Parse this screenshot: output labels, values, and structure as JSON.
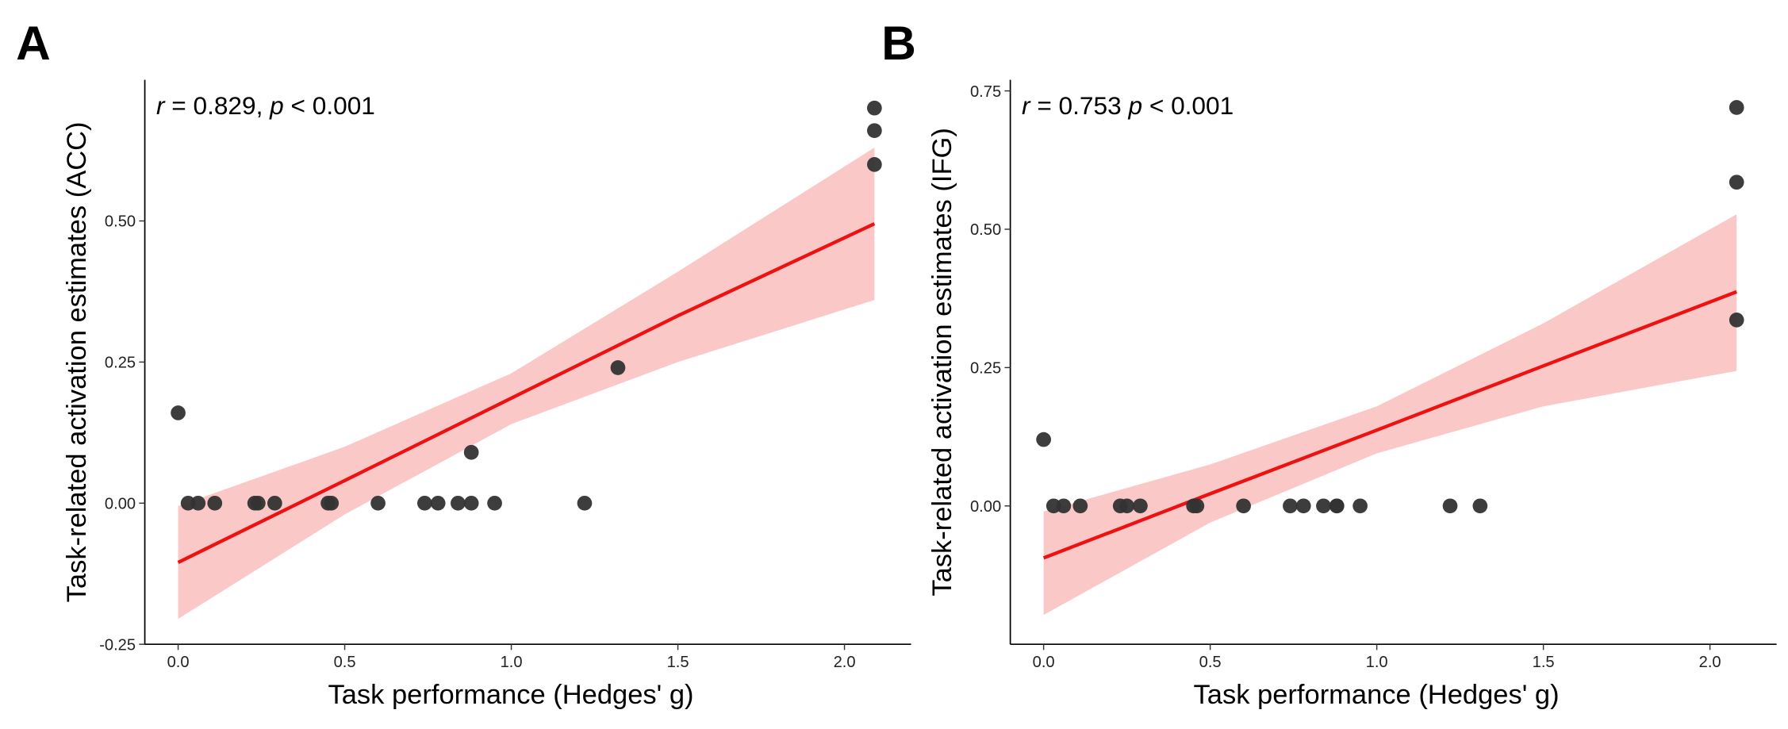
{
  "chart_data": [
    {
      "type": "scatter",
      "panel_label": "A",
      "annotation": {
        "r_symbol": "r",
        "r_text": " = 0.829, ",
        "p_symbol": "p",
        "p_text": " < 0.001"
      },
      "x_label": "Task performance (Hedges' g)",
      "y_label": "Task-related activation estimates (ACC)",
      "x": [
        0.0,
        0.03,
        0.06,
        0.11,
        0.23,
        0.24,
        0.29,
        0.45,
        0.46,
        0.6,
        0.74,
        0.78,
        0.84,
        0.88,
        0.88,
        0.95,
        1.22,
        1.32,
        2.09,
        2.09,
        2.09
      ],
      "values": [
        0.16,
        0,
        0,
        0,
        0,
        0,
        0,
        0,
        0,
        0,
        0,
        0,
        0,
        0,
        0.09,
        0,
        0,
        0.24,
        0.6,
        0.66,
        0.7
      ],
      "color": "#333333",
      "fit": {
        "x": [
          0,
          0.5,
          1.0,
          1.5,
          2.09
        ],
        "values": [
          -0.105,
          0.04,
          0.186,
          0.332,
          0.495
        ],
        "lower": [
          -0.205,
          -0.02,
          0.14,
          0.25,
          0.36
        ],
        "upper": [
          -0.005,
          0.1,
          0.23,
          0.41,
          0.63
        ],
        "color": "#ee1111",
        "band_color": "#fbc8c8"
      },
      "xlim": [
        -0.1,
        2.2
      ],
      "ylim": [
        -0.25,
        0.75
      ],
      "xticks": [
        {
          "value": 0,
          "label": "0.0"
        },
        0.5,
        {
          "value": 1,
          "label": "1.0"
        },
        1.5,
        {
          "value": 2,
          "label": "2.0"
        }
      ],
      "yticks": [
        -0.25,
        {
          "value": 0,
          "label": "0.00"
        },
        0.25,
        {
          "value": 0.5,
          "label": "0.50"
        }
      ]
    },
    {
      "type": "scatter",
      "panel_label": "B",
      "annotation": {
        "r_symbol": "r",
        "r_text": " = 0.753 ",
        "p_symbol": "p",
        "p_text": " < 0.001"
      },
      "x_label": "Task performance (Hedges' g)",
      "y_label": "Task-related activation estimates (IFG)",
      "x": [
        0.0,
        0.03,
        0.06,
        0.11,
        0.23,
        0.25,
        0.29,
        0.45,
        0.46,
        0.6,
        0.74,
        0.78,
        0.84,
        0.88,
        0.88,
        0.95,
        1.22,
        1.31,
        2.08,
        2.08,
        2.08
      ],
      "values": [
        0.12,
        0,
        0,
        0,
        0,
        0,
        0,
        0,
        0,
        0,
        0,
        0,
        0,
        0,
        0,
        0,
        0,
        0,
        0.336,
        0.585,
        0.72
      ],
      "color": "#333333",
      "fit": {
        "x": [
          0,
          0.5,
          1.0,
          1.5,
          2.08
        ],
        "values": [
          -0.094,
          0.022,
          0.137,
          0.253,
          0.387
        ],
        "lower": [
          -0.197,
          -0.03,
          0.095,
          0.18,
          0.244
        ],
        "upper": [
          -0.01,
          0.075,
          0.18,
          0.33,
          0.527
        ],
        "color": "#ee1111",
        "band_color": "#fbc8c8"
      },
      "xlim": [
        -0.1,
        2.2
      ],
      "ylim": [
        -0.25,
        0.77
      ],
      "xticks": [
        {
          "value": 0,
          "label": "0.0"
        },
        0.5,
        {
          "value": 1,
          "label": "1.0"
        },
        1.5,
        {
          "value": 2,
          "label": "2.0"
        }
      ],
      "yticks": [
        {
          "value": 0,
          "label": "0.00"
        },
        0.25,
        {
          "value": 0.5,
          "label": "0.50"
        },
        0.75
      ]
    }
  ]
}
